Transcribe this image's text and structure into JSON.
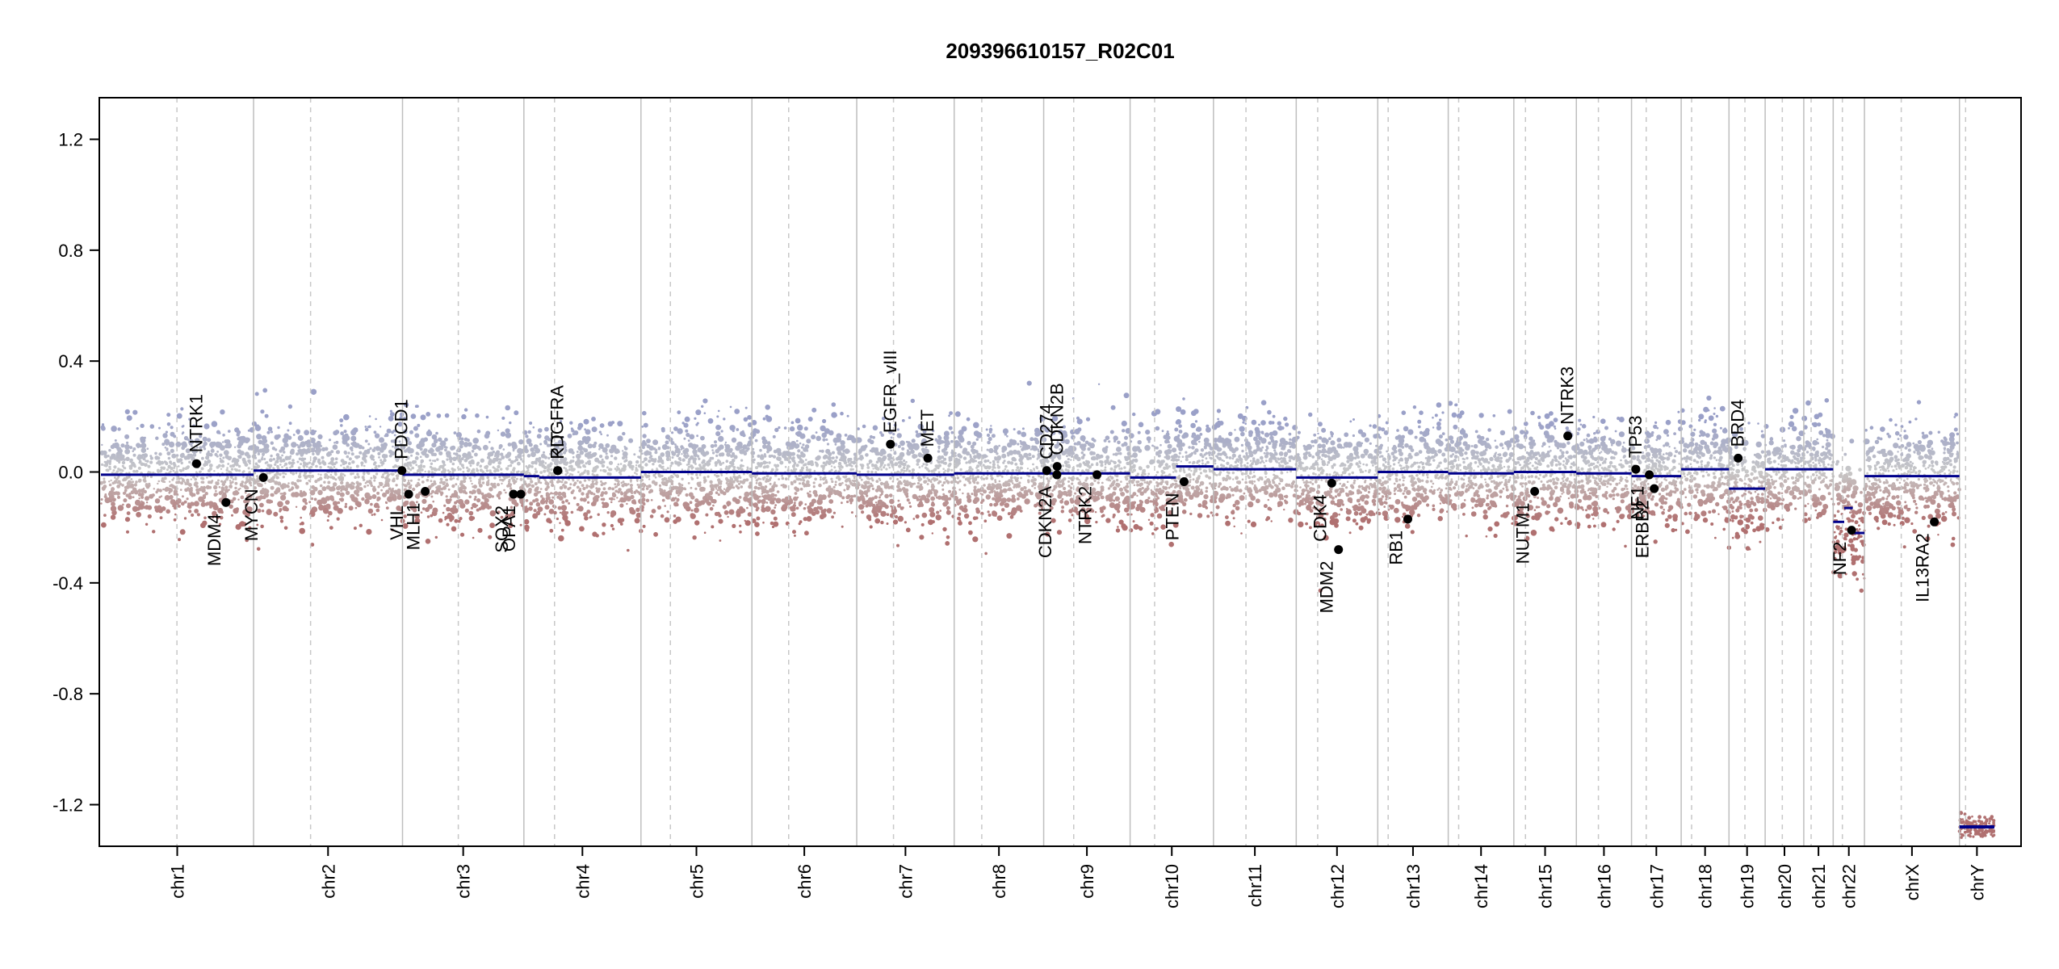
{
  "chart_data": {
    "type": "scatter",
    "title": "209396610157_R02C01",
    "xlabel": "",
    "ylabel": "",
    "ylim": [
      -1.35,
      1.35
    ],
    "yticks": [
      1.2,
      0.8,
      0.4,
      0.0,
      -0.4,
      -0.8,
      -1.2
    ],
    "ytick_labels": [
      "1.2",
      "0.8",
      "0.4",
      "0.0",
      "-0.4",
      "-0.8",
      "-1.2"
    ],
    "grid": false,
    "colors": {
      "axis": "#000000",
      "segment": "#00008B",
      "gain_points": "#9AA0C8",
      "loss_points": "#B07070",
      "neutral_points": "#C8C8C8",
      "chrom_boundary": "#BEBEBE",
      "centromere": "#C8C8C8",
      "gene_dot": "#000000"
    },
    "chromosomes": [
      {
        "name": "chr1",
        "length": 249
      },
      {
        "name": "chr2",
        "length": 243
      },
      {
        "name": "chr3",
        "length": 198
      },
      {
        "name": "chr4",
        "length": 191
      },
      {
        "name": "chr5",
        "length": 181
      },
      {
        "name": "chr6",
        "length": 171
      },
      {
        "name": "chr7",
        "length": 159
      },
      {
        "name": "chr8",
        "length": 146
      },
      {
        "name": "chr9",
        "length": 141
      },
      {
        "name": "chr10",
        "length": 136
      },
      {
        "name": "chr11",
        "length": 135
      },
      {
        "name": "chr12",
        "length": 133
      },
      {
        "name": "chr13",
        "length": 115
      },
      {
        "name": "chr14",
        "length": 107
      },
      {
        "name": "chr15",
        "length": 102
      },
      {
        "name": "chr16",
        "length": 90
      },
      {
        "name": "chr17",
        "length": 81
      },
      {
        "name": "chr18",
        "length": 78
      },
      {
        "name": "chr19",
        "length": 59
      },
      {
        "name": "chr20",
        "length": 63
      },
      {
        "name": "chr21",
        "length": 48
      },
      {
        "name": "chr22",
        "length": 51
      },
      {
        "name": "chrX",
        "length": 155
      },
      {
        "name": "chrY",
        "length": 57
      }
    ],
    "segments": [
      {
        "chr": "chr1",
        "start": 0,
        "end": 249,
        "value": -0.01
      },
      {
        "chr": "chr2",
        "start": 0,
        "end": 243,
        "value": 0.005
      },
      {
        "chr": "chr3",
        "start": 0,
        "end": 198,
        "value": -0.01
      },
      {
        "chr": "chr4",
        "start": 0,
        "end": 25,
        "value": -0.015
      },
      {
        "chr": "chr4",
        "start": 25,
        "end": 191,
        "value": -0.02
      },
      {
        "chr": "chr5",
        "start": 0,
        "end": 181,
        "value": 0.0
      },
      {
        "chr": "chr6",
        "start": 0,
        "end": 171,
        "value": -0.005
      },
      {
        "chr": "chr7",
        "start": 0,
        "end": 159,
        "value": -0.01
      },
      {
        "chr": "chr8",
        "start": 0,
        "end": 146,
        "value": -0.005
      },
      {
        "chr": "chr9",
        "start": 0,
        "end": 141,
        "value": -0.005
      },
      {
        "chr": "chr10",
        "start": 0,
        "end": 75,
        "value": -0.02
      },
      {
        "chr": "chr10",
        "start": 75,
        "end": 136,
        "value": 0.02
      },
      {
        "chr": "chr11",
        "start": 0,
        "end": 135,
        "value": 0.01
      },
      {
        "chr": "chr12",
        "start": 0,
        "end": 133,
        "value": -0.02
      },
      {
        "chr": "chr13",
        "start": 0,
        "end": 115,
        "value": 0.0
      },
      {
        "chr": "chr14",
        "start": 0,
        "end": 107,
        "value": -0.005
      },
      {
        "chr": "chr15",
        "start": 0,
        "end": 102,
        "value": 0.0
      },
      {
        "chr": "chr16",
        "start": 0,
        "end": 90,
        "value": -0.005
      },
      {
        "chr": "chr17",
        "start": 0,
        "end": 81,
        "value": -0.015
      },
      {
        "chr": "chr18",
        "start": 0,
        "end": 78,
        "value": 0.01
      },
      {
        "chr": "chr19",
        "start": 0,
        "end": 59,
        "value": -0.06
      },
      {
        "chr": "chr20",
        "start": 0,
        "end": 63,
        "value": 0.01
      },
      {
        "chr": "chr21",
        "start": 0,
        "end": 48,
        "value": 0.01
      },
      {
        "chr": "chr22",
        "start": 0,
        "end": 18,
        "value": -0.18
      },
      {
        "chr": "chr22",
        "start": 18,
        "end": 32,
        "value": -0.13
      },
      {
        "chr": "chr22",
        "start": 32,
        "end": 51,
        "value": -0.22
      },
      {
        "chr": "chrX",
        "start": 0,
        "end": 155,
        "value": -0.015
      },
      {
        "chr": "chrY",
        "start": 0,
        "end": 57,
        "value": -1.28
      }
    ],
    "centromeres": [
      {
        "chr": "chr1",
        "pos": 124
      },
      {
        "chr": "chr2",
        "pos": 93
      },
      {
        "chr": "chr3",
        "pos": 91
      },
      {
        "chr": "chr4",
        "pos": 50
      },
      {
        "chr": "chr5",
        "pos": 48
      },
      {
        "chr": "chr6",
        "pos": 60
      },
      {
        "chr": "chr7",
        "pos": 60
      },
      {
        "chr": "chr8",
        "pos": 45
      },
      {
        "chr": "chr9",
        "pos": 49
      },
      {
        "chr": "chr10",
        "pos": 40
      },
      {
        "chr": "chr11",
        "pos": 53
      },
      {
        "chr": "chr12",
        "pos": 35
      },
      {
        "chr": "chr13",
        "pos": 17
      },
      {
        "chr": "chr14",
        "pos": 17
      },
      {
        "chr": "chr15",
        "pos": 19
      },
      {
        "chr": "chr16",
        "pos": 36
      },
      {
        "chr": "chr17",
        "pos": 24
      },
      {
        "chr": "chr18",
        "pos": 17
      },
      {
        "chr": "chr19",
        "pos": 26
      },
      {
        "chr": "chr20",
        "pos": 28
      },
      {
        "chr": "chr21",
        "pos": 12
      },
      {
        "chr": "chr22",
        "pos": 15
      },
      {
        "chr": "chrX",
        "pos": 60
      },
      {
        "chr": "chrY",
        "pos": 10
      }
    ],
    "genes": [
      {
        "name": "NTRK1",
        "chr": "chr1",
        "pos": 156,
        "value": 0.03,
        "label_side": "above"
      },
      {
        "name": "MDM4",
        "chr": "chr1",
        "pos": 204,
        "value": -0.11,
        "label_side": "below"
      },
      {
        "name": "MYCN",
        "chr": "chr2",
        "pos": 16,
        "value": -0.02,
        "label_side": "below"
      },
      {
        "name": "PDCD1",
        "chr": "chr2",
        "pos": 242,
        "value": 0.005,
        "label_side": "above"
      },
      {
        "name": "VHL",
        "chr": "chr3",
        "pos": 10,
        "value": -0.08,
        "label_side": "below"
      },
      {
        "name": "MLH1",
        "chr": "chr3",
        "pos": 37,
        "value": -0.07,
        "label_side": "below"
      },
      {
        "name": "SOX2",
        "chr": "chr3",
        "pos": 181,
        "value": -0.08,
        "label_side": "below"
      },
      {
        "name": "OPA1",
        "chr": "chr3",
        "pos": 193,
        "value": -0.08,
        "label_side": "below"
      },
      {
        "name": "PDGFRA",
        "chr": "chr4",
        "pos": 55,
        "value": 0.005,
        "label_side": "above"
      },
      {
        "name": "KIT",
        "chr": "chr4",
        "pos": 55.5,
        "value": 0.005,
        "label_side": "above"
      },
      {
        "name": "EGFR_vIII",
        "chr": "chr7",
        "pos": 55,
        "value": 0.1,
        "label_side": "above"
      },
      {
        "name": "MET",
        "chr": "chr7",
        "pos": 116,
        "value": 0.05,
        "label_side": "above"
      },
      {
        "name": "CD274",
        "chr": "chr9",
        "pos": 5,
        "value": 0.005,
        "label_side": "above"
      },
      {
        "name": "CDKN2B",
        "chr": "chr9",
        "pos": 22,
        "value": 0.02,
        "label_side": "above"
      },
      {
        "name": "CDKN2A",
        "chr": "chr9",
        "pos": 21.5,
        "value": -0.01,
        "label_side": "below"
      },
      {
        "name": "NTRK2",
        "chr": "chr9",
        "pos": 87,
        "value": -0.01,
        "label_side": "below"
      },
      {
        "name": "PTEN",
        "chr": "chr10",
        "pos": 88,
        "value": -0.035,
        "label_side": "below"
      },
      {
        "name": "CDK4",
        "chr": "chr12",
        "pos": 58,
        "value": -0.04,
        "label_side": "below"
      },
      {
        "name": "MDM2",
        "chr": "chr12",
        "pos": 69,
        "value": -0.28,
        "label_side": "below"
      },
      {
        "name": "RB1",
        "chr": "chr13",
        "pos": 49,
        "value": -0.17,
        "label_side": "below"
      },
      {
        "name": "NUTM1",
        "chr": "chr15",
        "pos": 34,
        "value": -0.07,
        "label_side": "below"
      },
      {
        "name": "NTRK3",
        "chr": "chr15",
        "pos": 88,
        "value": 0.13,
        "label_side": "above"
      },
      {
        "name": "TP53",
        "chr": "chr17",
        "pos": 7,
        "value": 0.01,
        "label_side": "above"
      },
      {
        "name": "NF1",
        "chr": "chr17",
        "pos": 29,
        "value": -0.01,
        "label_side": "below"
      },
      {
        "name": "ERBB2",
        "chr": "chr17",
        "pos": 37,
        "value": -0.06,
        "label_side": "below"
      },
      {
        "name": "BRD4",
        "chr": "chr19",
        "pos": 15,
        "value": 0.05,
        "label_side": "above"
      },
      {
        "name": "NF2",
        "chr": "chr22",
        "pos": 30,
        "value": -0.21,
        "label_side": "below"
      },
      {
        "name": "IL13RA2",
        "chrX": true,
        "chr": "chrX",
        "pos": 114,
        "value": -0.18,
        "label_side": "below"
      }
    ]
  }
}
